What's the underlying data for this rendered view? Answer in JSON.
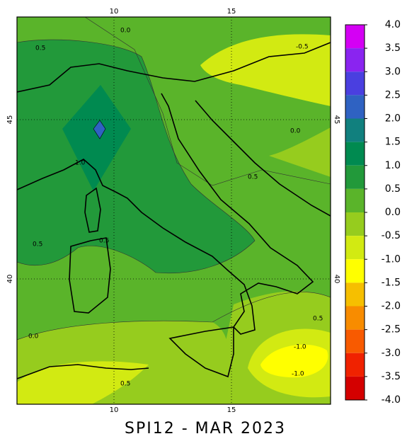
{
  "title": "SPI12 - MAR 2023",
  "lon_labels": [
    "10",
    "15"
  ],
  "lat_labels": [
    "45",
    "40"
  ],
  "contour_labels": [
    "0.0",
    "0.5",
    "-0.5",
    "0.0",
    "1.0",
    "0.5",
    "0.5",
    "0.5",
    "0.0",
    "0.5",
    "-1.0",
    "-1.0",
    "0.5"
  ],
  "colorbar": {
    "labels": [
      "4.0",
      "3.5",
      "3.0",
      "2.5",
      "2.0",
      "1.5",
      "1.0",
      "0.5",
      "0.0",
      "-0.5",
      "-1.0",
      "-1.5",
      "-2.0",
      "-2.5",
      "-3.0",
      "-3.5",
      "-4.0"
    ],
    "colors": [
      "#d400f4",
      "#8a24f0",
      "#4a3fe0",
      "#2f62c2",
      "#11807e",
      "#008a50",
      "#22993a",
      "#5ab42a",
      "#96cc1e",
      "#d2ea12",
      "#ffff00",
      "#f6bf00",
      "#f88c00",
      "#f85a00",
      "#f02200",
      "#d40000"
    ]
  }
}
